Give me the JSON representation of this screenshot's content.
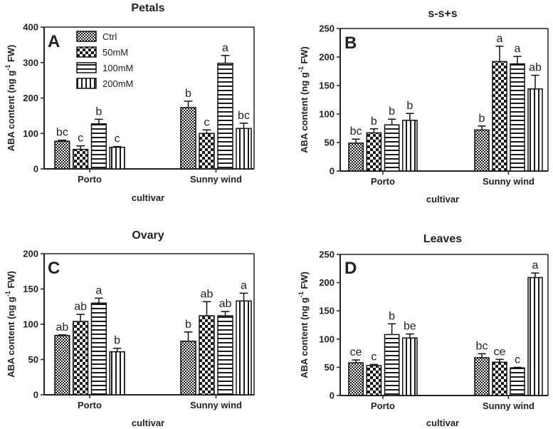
{
  "figure": {
    "legend": [
      "Ctrl",
      "50mM",
      "100mM",
      "200mM"
    ]
  },
  "chart_data": [
    {
      "type": "bar",
      "panel": "A",
      "title": "Petals",
      "ylabel": "ABA content (ng g⁻¹ FW)",
      "xlabel": "cultivar",
      "categories": [
        "Porto",
        "Sunny wind"
      ],
      "ylim": [
        0,
        400
      ],
      "yticks": [
        0,
        100,
        200,
        300,
        400
      ],
      "series": [
        {
          "name": "Ctrl",
          "values": [
            78,
            173
          ],
          "errors": [
            3,
            18
          ],
          "letters": [
            "bc",
            "b"
          ]
        },
        {
          "name": "50mM",
          "values": [
            55,
            100
          ],
          "errors": [
            10,
            10
          ],
          "letters": [
            "c",
            "c"
          ]
        },
        {
          "name": "100mM",
          "values": [
            127,
            298
          ],
          "errors": [
            13,
            22
          ],
          "letters": [
            "b",
            "a"
          ]
        },
        {
          "name": "200mM",
          "values": [
            61,
            114
          ],
          "errors": [
            2,
            15
          ],
          "letters": [
            "c",
            "bc"
          ]
        }
      ],
      "legend_position": "top-left"
    },
    {
      "type": "bar",
      "panel": "B",
      "title": "s-s+s",
      "ylabel": "ABA content (ng g⁻¹ FW)",
      "xlabel": "cultivar",
      "categories": [
        "Porto",
        "Sunny wind"
      ],
      "ylim": [
        0,
        250
      ],
      "yticks": [
        0,
        50,
        100,
        150,
        200,
        250
      ],
      "series": [
        {
          "name": "Ctrl",
          "values": [
            49,
            72
          ],
          "errors": [
            7,
            7
          ],
          "letters": [
            "bc",
            "b"
          ]
        },
        {
          "name": "50mM",
          "values": [
            67,
            192
          ],
          "errors": [
            7,
            27
          ],
          "letters": [
            "b",
            "a"
          ]
        },
        {
          "name": "100mM",
          "values": [
            81,
            188
          ],
          "errors": [
            10,
            13
          ],
          "letters": [
            "b",
            "a"
          ]
        },
        {
          "name": "200mM",
          "values": [
            89,
            144
          ],
          "errors": [
            12,
            24
          ],
          "letters": [
            "b",
            "ab"
          ]
        }
      ]
    },
    {
      "type": "bar",
      "panel": "C",
      "title": "Ovary",
      "ylabel": "ABA content (ng g⁻¹ FW)",
      "xlabel": "cultivar",
      "categories": [
        "Porto",
        "Sunny wind"
      ],
      "ylim": [
        0,
        200
      ],
      "yticks": [
        0,
        50,
        100,
        150,
        200
      ],
      "series": [
        {
          "name": "Ctrl",
          "values": [
            84,
            76
          ],
          "errors": [
            1,
            13
          ],
          "letters": [
            "ab",
            "b"
          ]
        },
        {
          "name": "50mM",
          "values": [
            104,
            112
          ],
          "errors": [
            10,
            20
          ],
          "letters": [
            "ab",
            "ab"
          ]
        },
        {
          "name": "100mM",
          "values": [
            130,
            112
          ],
          "errors": [
            7,
            6
          ],
          "letters": [
            "a",
            "ab"
          ]
        },
        {
          "name": "200mM",
          "values": [
            61,
            133
          ],
          "errors": [
            5,
            11
          ],
          "letters": [
            "b",
            "a"
          ]
        }
      ]
    },
    {
      "type": "bar",
      "panel": "D",
      "title": "Leaves",
      "ylabel": "ABA content (ng g⁻¹ FW)",
      "xlabel": "cultivar",
      "categories": [
        "Porto",
        "Sunny wind"
      ],
      "ylim": [
        0,
        250
      ],
      "yticks": [
        0,
        50,
        100,
        150,
        200,
        250
      ],
      "series": [
        {
          "name": "Ctrl",
          "values": [
            58,
            67
          ],
          "errors": [
            5,
            7
          ],
          "letters": [
            "ce",
            "bc"
          ]
        },
        {
          "name": "50mM",
          "values": [
            53,
            59
          ],
          "errors": [
            2,
            5
          ],
          "letters": [
            "c",
            "ce"
          ]
        },
        {
          "name": "100mM",
          "values": [
            108,
            49
          ],
          "errors": [
            19,
            1
          ],
          "letters": [
            "b",
            "c"
          ]
        },
        {
          "name": "200mM",
          "values": [
            102,
            209
          ],
          "errors": [
            7,
            8
          ],
          "letters": [
            "be",
            "a"
          ]
        }
      ]
    }
  ]
}
